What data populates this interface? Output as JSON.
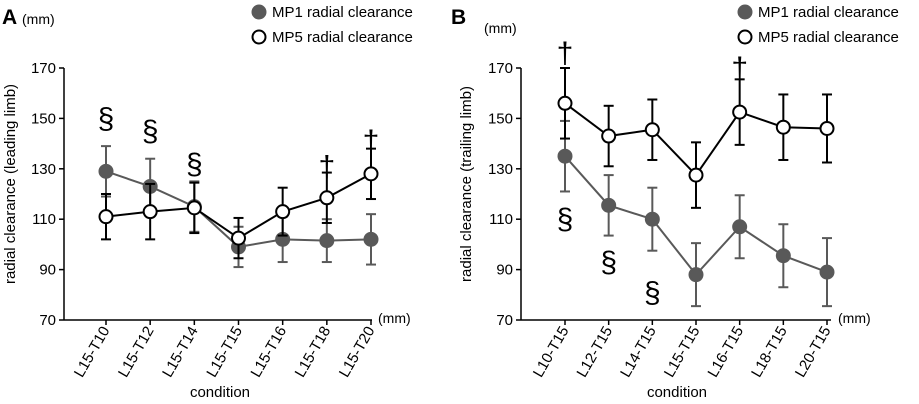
{
  "chart_data": [
    {
      "type": "line",
      "panel_label": "A",
      "ylabel": "radial clearance (leading limb)",
      "xlabel": "condition",
      "y_unit": "(mm)",
      "x_unit": "(mm)",
      "ylim": [
        70,
        170
      ],
      "yticks": [
        70,
        90,
        110,
        130,
        150,
        170
      ],
      "categories": [
        "L15-T10",
        "L15-T12",
        "L15-T14",
        "L15-T15",
        "L15-T16",
        "L15-T18",
        "L15-T20"
      ],
      "legend": [
        "MP1 radial clearance",
        "MP5 radial clearance"
      ],
      "legend_position": "top-right",
      "series": [
        {
          "name": "MP1 radial clearance",
          "marker": "filled",
          "values": [
            129,
            123,
            115,
            99,
            102,
            101.5,
            102
          ],
          "errors": [
            10,
            11,
            10,
            8,
            9,
            8.5,
            10
          ]
        },
        {
          "name": "MP5 radial clearance",
          "marker": "open",
          "values": [
            111,
            113,
            114.5,
            102.5,
            113,
            118.5,
            128
          ],
          "errors": [
            9,
            11,
            10,
            8,
            9.5,
            10,
            10
          ]
        }
      ],
      "annotations": [
        {
          "symbol": "§",
          "index": 0,
          "value": 150
        },
        {
          "symbol": "§",
          "index": 1,
          "value": 145
        },
        {
          "symbol": "§",
          "index": 2,
          "value": 132
        },
        {
          "symbol": "†",
          "index": 5,
          "value": 131
        },
        {
          "symbol": "†",
          "index": 6,
          "value": 141
        }
      ]
    },
    {
      "type": "line",
      "panel_label": "B",
      "ylabel": "radial clearance (trailing limb)",
      "xlabel": "condition",
      "y_unit": "(mm)",
      "x_unit": "(mm)",
      "ylim": [
        70,
        170
      ],
      "yticks": [
        70,
        90,
        110,
        130,
        150,
        170
      ],
      "categories": [
        "L10-T15",
        "L12-T15",
        "L14-T15",
        "L15-T15",
        "L16-T15",
        "L18-T15",
        "L20-T15"
      ],
      "legend": [
        "MP1 radial clearance",
        "MP5 radial clearance"
      ],
      "legend_position": "top-right",
      "series": [
        {
          "name": "MP1 radial clearance",
          "marker": "filled",
          "values": [
            135,
            115.5,
            110,
            88,
            107,
            95.5,
            89
          ],
          "errors": [
            14,
            12,
            12.5,
            12.5,
            12.5,
            12.5,
            13.5
          ]
        },
        {
          "name": "MP5 radial clearance",
          "marker": "open",
          "values": [
            156,
            143,
            145.5,
            127.5,
            152.5,
            146.5,
            146
          ],
          "errors": [
            14,
            12,
            12,
            13,
            13,
            13,
            13.5
          ]
        }
      ],
      "annotations": [
        {
          "symbol": "†",
          "index": 0,
          "value": 176
        },
        {
          "symbol": "§",
          "index": 0,
          "value": 110
        },
        {
          "symbol": "§",
          "index": 1,
          "value": 93
        },
        {
          "symbol": "§",
          "index": 2,
          "value": 81
        },
        {
          "symbol": "†",
          "index": 4,
          "value": 170
        }
      ]
    }
  ]
}
